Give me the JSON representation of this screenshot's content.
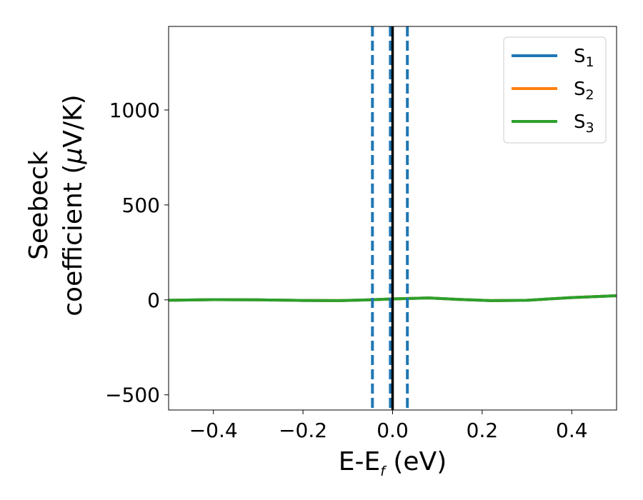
{
  "chart_data": {
    "type": "line",
    "xlabel": {
      "main": "E-E",
      "sub": "f",
      "tail": " (eV)"
    },
    "ylabel": {
      "line1": "Seebeck",
      "line2_prefix": "coefficient  (",
      "mu": "μ",
      "line2_suffix": "V/K)"
    },
    "xlim": [
      -0.5,
      0.5
    ],
    "ylim": [
      -580,
      1440
    ],
    "xticks": [
      -0.4,
      -0.2,
      0.0,
      0.2,
      0.4
    ],
    "xtick_labels": [
      "−0.4",
      "−0.2",
      "0.0",
      "0.2",
      "0.4"
    ],
    "yticks": [
      -500,
      0,
      500,
      1000
    ],
    "ytick_labels": [
      "−500",
      "0",
      "500",
      "1000"
    ],
    "grid": false,
    "legend_placement": "top-right",
    "series": [
      {
        "name": "S1",
        "label_main": "S",
        "label_sub": "1",
        "color": "#1f77b4",
        "x": [
          -0.5,
          -0.4,
          -0.3,
          -0.2,
          -0.12,
          -0.05,
          0.0,
          0.08,
          0.15,
          0.22,
          0.3,
          0.4,
          0.5
        ],
        "y": [
          -2,
          1,
          0,
          -3,
          -4,
          0,
          5,
          10,
          2,
          -4,
          -2,
          12,
          22
        ]
      },
      {
        "name": "S2",
        "label_main": "S",
        "label_sub": "2",
        "color": "#ff7f0e",
        "x": [
          -0.5,
          -0.4,
          -0.3,
          -0.2,
          -0.12,
          -0.05,
          0.0,
          0.08,
          0.15,
          0.22,
          0.3,
          0.4,
          0.5
        ],
        "y": [
          -2,
          1,
          0,
          -3,
          -4,
          0,
          5,
          10,
          2,
          -4,
          -2,
          12,
          22
        ]
      },
      {
        "name": "S3",
        "label_main": "S",
        "label_sub": "3",
        "color": "#2ca02c",
        "x": [
          -0.5,
          -0.4,
          -0.3,
          -0.2,
          -0.12,
          -0.05,
          0.0,
          0.08,
          0.15,
          0.22,
          0.3,
          0.4,
          0.5
        ],
        "y": [
          -2,
          1,
          0,
          -3,
          -4,
          0,
          5,
          10,
          2,
          -4,
          -2,
          12,
          22
        ]
      }
    ],
    "vlines": [
      {
        "x": -0.045,
        "style": "dashed",
        "color": "#1f77b4"
      },
      {
        "x": -0.005,
        "style": "dashed",
        "color": "#1f77b4"
      },
      {
        "x": 0.033,
        "style": "dashed",
        "color": "#1f77b4"
      },
      {
        "x": 0.0,
        "style": "solid",
        "color": "#000000"
      }
    ]
  }
}
